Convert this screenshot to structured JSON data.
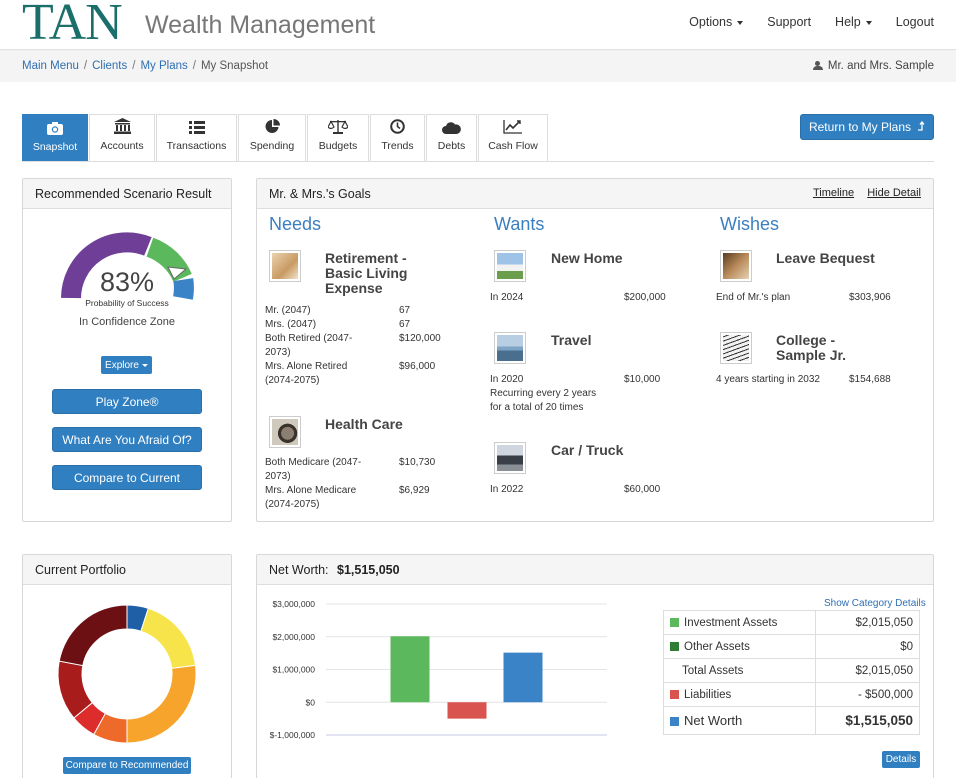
{
  "header": {
    "logo_main": "TAN",
    "logo_sub": "Wealth Management",
    "nav": [
      {
        "label": "Options",
        "dropdown": true
      },
      {
        "label": "Support",
        "dropdown": false
      },
      {
        "label": "Help",
        "dropdown": true
      },
      {
        "label": "Logout",
        "dropdown": false
      }
    ]
  },
  "breadcrumb": [
    "Main Menu",
    "Clients",
    "My Plans",
    "My Snapshot"
  ],
  "client_name": "Mr. and Mrs. Sample",
  "tabs": [
    {
      "label": "Snapshot",
      "icon": "camera-icon",
      "active": true
    },
    {
      "label": "Accounts",
      "icon": "bank-icon",
      "active": false
    },
    {
      "label": "Transactions",
      "icon": "list-icon",
      "active": false
    },
    {
      "label": "Spending",
      "icon": "pie-icon",
      "active": false
    },
    {
      "label": "Budgets",
      "icon": "scale-icon",
      "active": false
    },
    {
      "label": "Trends",
      "icon": "clock-icon",
      "active": false
    },
    {
      "label": "Debts",
      "icon": "cloud-icon",
      "active": false
    },
    {
      "label": "Cash Flow",
      "icon": "line-chart-icon",
      "active": false
    }
  ],
  "return_button": "Return to My Plans",
  "scenario": {
    "title": "Recommended Scenario Result",
    "probability": "83%",
    "probability_value": 0.83,
    "probability_label": "Probability of Success",
    "zone": "In Confidence Zone",
    "explore": "Explore",
    "buttons": [
      "Play Zone®",
      "What Are You Afraid Of?",
      "Compare to Current"
    ],
    "gauge_colors": {
      "low": "#6f3f98",
      "confidence": "#5cb85c",
      "high": "#3a83c6"
    }
  },
  "goals": {
    "title": "Mr. & Mrs.'s Goals",
    "links": [
      "Timeline",
      "Hide Detail"
    ],
    "columns": {
      "needs": "Needs",
      "wants": "Wants",
      "wishes": "Wishes"
    },
    "retirement": {
      "title": "Retirement - Basic Living Expense",
      "rows": [
        {
          "label": "Mr. (2047)",
          "value": "67"
        },
        {
          "label": "Mrs. (2047)",
          "value": "67"
        },
        {
          "label": "Both Retired (2047-2073)",
          "value": "$120,000"
        },
        {
          "label": "Mrs. Alone Retired (2074-2075)",
          "value": "$96,000"
        }
      ]
    },
    "health": {
      "title": "Health Care",
      "rows": [
        {
          "label": "Both Medicare (2047-2073)",
          "value": "$10,730"
        },
        {
          "label": "Mrs. Alone Medicare (2074-2075)",
          "value": "$6,929"
        }
      ]
    },
    "home": {
      "title": "New Home",
      "when": "In 2024",
      "value": "$200,000"
    },
    "travel": {
      "title": "Travel",
      "when": "In 2020",
      "value": "$10,000",
      "note": "Recurring every 2 years for a total of 20 times"
    },
    "car": {
      "title": "Car / Truck",
      "when": "In 2022",
      "value": "$60,000"
    },
    "bequest": {
      "title": "Leave Bequest",
      "when": "End of Mr.'s plan",
      "value": "$303,906"
    },
    "college": {
      "title": "College - Sample Jr.",
      "when": "4 years starting in 2032",
      "value": "$154,688"
    }
  },
  "portfolio": {
    "title": "Current Portfolio",
    "compare_button": "Compare to Recommended",
    "slices": [
      {
        "value": 5,
        "color": "#1f5fa6"
      },
      {
        "value": 18,
        "color": "#f7e34a"
      },
      {
        "value": 27,
        "color": "#f6a42c"
      },
      {
        "value": 8,
        "color": "#ee6a2a"
      },
      {
        "value": 6,
        "color": "#dd2c2c"
      },
      {
        "value": 14,
        "color": "#a81c1c"
      },
      {
        "value": 22,
        "color": "#6d1014"
      }
    ]
  },
  "networth": {
    "title": "Net Worth:",
    "total": "$1,515,050",
    "show_details": "Show Category Details",
    "details_button": "Details",
    "rows": [
      {
        "label": "Investment Assets",
        "value": "$2,015,050",
        "color": "#5cb85c"
      },
      {
        "label": "Other Assets",
        "value": "$0",
        "color": "#2e7d32"
      },
      {
        "label": "Total Assets",
        "value": "$2,015,050",
        "color": ""
      },
      {
        "label": "Liabilities",
        "value": "- $500,000",
        "color": "#d9534f"
      },
      {
        "label": "Net Worth",
        "value": "$1,515,050",
        "color": "#3a83c6"
      }
    ]
  },
  "chart_data": {
    "type": "bar",
    "categories": [
      "Assets",
      "Liabilities",
      "Net Worth"
    ],
    "values": [
      2015050,
      -500000,
      1515050
    ],
    "colors": [
      "#5cb85c",
      "#d9534f",
      "#3a83c6"
    ],
    "yticks": [
      "$3,000,000",
      "$2,000,000",
      "$1,000,000",
      "$0",
      "$-1,000,000"
    ],
    "ylim": [
      -1000000,
      3000000
    ],
    "grid": true
  }
}
